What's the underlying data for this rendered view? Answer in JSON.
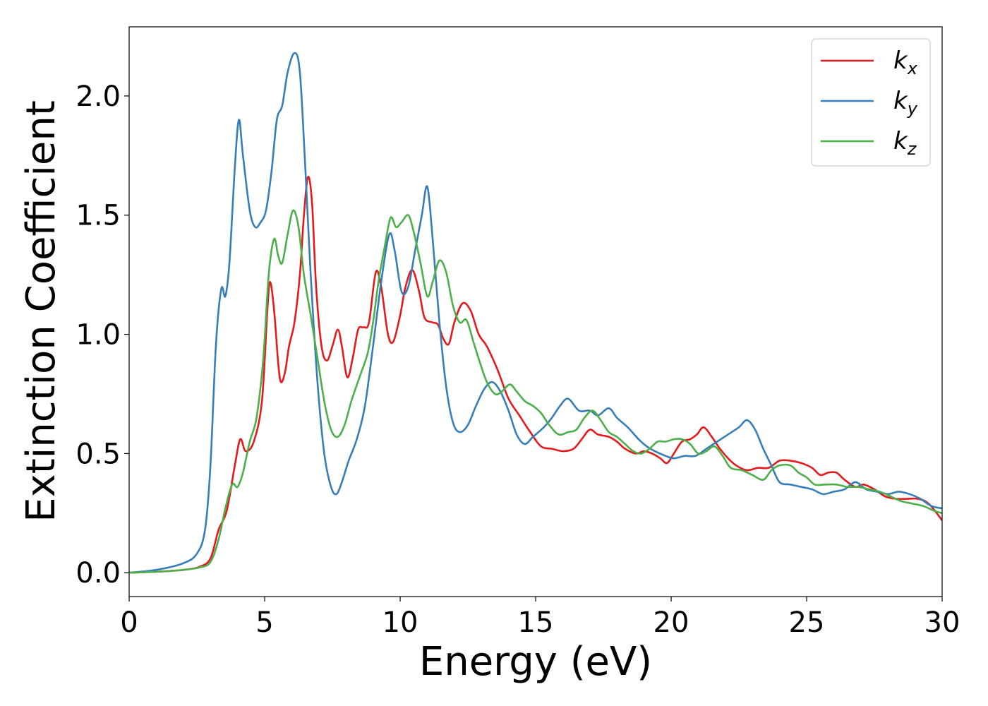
{
  "chart_data": {
    "type": "line",
    "xlabel": "Energy (eV)",
    "ylabel": "Extinction Coefficient",
    "xlim": [
      0,
      30
    ],
    "ylim": [
      -0.1,
      2.29
    ],
    "x_ticks": [
      0,
      5,
      10,
      15,
      20,
      25,
      30
    ],
    "y_ticks": [
      0.0,
      0.5,
      1.0,
      1.5,
      2.0
    ],
    "x_tick_labels": [
      "0",
      "5",
      "10",
      "15",
      "20",
      "25",
      "30"
    ],
    "y_tick_labels": [
      "0.0",
      "0.5",
      "1.0",
      "1.5",
      "2.0"
    ],
    "grid": false,
    "legend_position": "top-right",
    "series": [
      {
        "name": "k_x",
        "label_main": "k",
        "label_sub": "x",
        "color": "#e41a1c",
        "points": [
          [
            0,
            0
          ],
          [
            1,
            0.004
          ],
          [
            2,
            0.012
          ],
          [
            2.6,
            0.025
          ],
          [
            3,
            0.06
          ],
          [
            3.3,
            0.18
          ],
          [
            3.6,
            0.26
          ],
          [
            3.9,
            0.45
          ],
          [
            4.1,
            0.56
          ],
          [
            4.3,
            0.51
          ],
          [
            4.6,
            0.55
          ],
          [
            4.9,
            0.72
          ],
          [
            5.1,
            1.1
          ],
          [
            5.2,
            1.22
          ],
          [
            5.35,
            1.1
          ],
          [
            5.5,
            0.88
          ],
          [
            5.6,
            0.8
          ],
          [
            5.75,
            0.84
          ],
          [
            5.9,
            0.95
          ],
          [
            6.1,
            1.05
          ],
          [
            6.3,
            1.25
          ],
          [
            6.45,
            1.5
          ],
          [
            6.6,
            1.66
          ],
          [
            6.75,
            1.55
          ],
          [
            6.9,
            1.2
          ],
          [
            7.1,
            0.95
          ],
          [
            7.3,
            0.89
          ],
          [
            7.5,
            0.95
          ],
          [
            7.7,
            1.02
          ],
          [
            7.85,
            0.95
          ],
          [
            8.05,
            0.82
          ],
          [
            8.25,
            0.9
          ],
          [
            8.45,
            1.02
          ],
          [
            8.65,
            1.03
          ],
          [
            8.85,
            1.05
          ],
          [
            9.1,
            1.26
          ],
          [
            9.3,
            1.2
          ],
          [
            9.55,
            1.0
          ],
          [
            9.75,
            0.97
          ],
          [
            10.0,
            1.08
          ],
          [
            10.2,
            1.2
          ],
          [
            10.45,
            1.27
          ],
          [
            10.7,
            1.18
          ],
          [
            10.9,
            1.07
          ],
          [
            11.2,
            1.05
          ],
          [
            11.4,
            1.04
          ],
          [
            11.6,
            0.98
          ],
          [
            11.8,
            0.96
          ],
          [
            12.0,
            1.05
          ],
          [
            12.3,
            1.13
          ],
          [
            12.6,
            1.1
          ],
          [
            12.9,
            1.0
          ],
          [
            13.2,
            0.95
          ],
          [
            13.6,
            0.85
          ],
          [
            14.0,
            0.73
          ],
          [
            14.4,
            0.66
          ],
          [
            14.8,
            0.59
          ],
          [
            15.2,
            0.53
          ],
          [
            15.6,
            0.52
          ],
          [
            16.0,
            0.51
          ],
          [
            16.4,
            0.52
          ],
          [
            16.7,
            0.56
          ],
          [
            17.0,
            0.6
          ],
          [
            17.3,
            0.58
          ],
          [
            17.7,
            0.57
          ],
          [
            18.0,
            0.55
          ],
          [
            18.3,
            0.52
          ],
          [
            18.7,
            0.5
          ],
          [
            19.0,
            0.51
          ],
          [
            19.3,
            0.5
          ],
          [
            19.6,
            0.48
          ],
          [
            19.85,
            0.46
          ],
          [
            20.1,
            0.5
          ],
          [
            20.4,
            0.55
          ],
          [
            20.7,
            0.56
          ],
          [
            20.95,
            0.58
          ],
          [
            21.2,
            0.61
          ],
          [
            21.5,
            0.57
          ],
          [
            21.8,
            0.52
          ],
          [
            22.1,
            0.48
          ],
          [
            22.4,
            0.45
          ],
          [
            22.8,
            0.43
          ],
          [
            23.2,
            0.44
          ],
          [
            23.6,
            0.44
          ],
          [
            24.0,
            0.47
          ],
          [
            24.4,
            0.47
          ],
          [
            24.8,
            0.46
          ],
          [
            25.2,
            0.44
          ],
          [
            25.5,
            0.41
          ],
          [
            25.8,
            0.42
          ],
          [
            26.1,
            0.42
          ],
          [
            26.4,
            0.39
          ],
          [
            26.8,
            0.36
          ],
          [
            27.1,
            0.37
          ],
          [
            27.5,
            0.35
          ],
          [
            27.9,
            0.32
          ],
          [
            28.3,
            0.31
          ],
          [
            28.7,
            0.31
          ],
          [
            29.1,
            0.31
          ],
          [
            29.5,
            0.29
          ],
          [
            30.0,
            0.22
          ]
        ]
      },
      {
        "name": "k_y",
        "label_main": "k",
        "label_sub": "y",
        "color": "#377eb8",
        "points": [
          [
            0,
            0
          ],
          [
            1,
            0.012
          ],
          [
            2,
            0.04
          ],
          [
            2.5,
            0.08
          ],
          [
            2.8,
            0.18
          ],
          [
            3.0,
            0.45
          ],
          [
            3.2,
            0.95
          ],
          [
            3.4,
            1.19
          ],
          [
            3.55,
            1.16
          ],
          [
            3.7,
            1.3
          ],
          [
            3.9,
            1.7
          ],
          [
            4.05,
            1.9
          ],
          [
            4.2,
            1.75
          ],
          [
            4.45,
            1.52
          ],
          [
            4.65,
            1.45
          ],
          [
            4.85,
            1.47
          ],
          [
            5.05,
            1.52
          ],
          [
            5.25,
            1.68
          ],
          [
            5.45,
            1.9
          ],
          [
            5.65,
            1.96
          ],
          [
            5.85,
            2.1
          ],
          [
            6.1,
            2.18
          ],
          [
            6.3,
            2.1
          ],
          [
            6.5,
            1.7
          ],
          [
            6.7,
            1.25
          ],
          [
            6.95,
            0.8
          ],
          [
            7.2,
            0.5
          ],
          [
            7.45,
            0.36
          ],
          [
            7.65,
            0.33
          ],
          [
            7.85,
            0.38
          ],
          [
            8.1,
            0.47
          ],
          [
            8.4,
            0.56
          ],
          [
            8.7,
            0.7
          ],
          [
            9.0,
            0.95
          ],
          [
            9.3,
            1.22
          ],
          [
            9.6,
            1.42
          ],
          [
            9.8,
            1.35
          ],
          [
            10.05,
            1.18
          ],
          [
            10.3,
            1.2
          ],
          [
            10.55,
            1.35
          ],
          [
            10.8,
            1.5
          ],
          [
            11.0,
            1.62
          ],
          [
            11.2,
            1.4
          ],
          [
            11.45,
            1.05
          ],
          [
            11.7,
            0.78
          ],
          [
            11.95,
            0.63
          ],
          [
            12.2,
            0.59
          ],
          [
            12.5,
            0.62
          ],
          [
            12.8,
            0.7
          ],
          [
            13.1,
            0.77
          ],
          [
            13.4,
            0.8
          ],
          [
            13.7,
            0.76
          ],
          [
            14.0,
            0.68
          ],
          [
            14.3,
            0.58
          ],
          [
            14.6,
            0.54
          ],
          [
            14.9,
            0.57
          ],
          [
            15.3,
            0.61
          ],
          [
            15.6,
            0.65
          ],
          [
            15.9,
            0.7
          ],
          [
            16.2,
            0.73
          ],
          [
            16.6,
            0.68
          ],
          [
            17.0,
            0.68
          ],
          [
            17.3,
            0.66
          ],
          [
            17.7,
            0.69
          ],
          [
            18.0,
            0.65
          ],
          [
            18.4,
            0.61
          ],
          [
            18.8,
            0.56
          ],
          [
            19.1,
            0.53
          ],
          [
            19.4,
            0.51
          ],
          [
            19.8,
            0.49
          ],
          [
            20.1,
            0.48
          ],
          [
            20.5,
            0.49
          ],
          [
            20.9,
            0.49
          ],
          [
            21.3,
            0.52
          ],
          [
            21.7,
            0.55
          ],
          [
            22.1,
            0.58
          ],
          [
            22.5,
            0.61
          ],
          [
            22.8,
            0.64
          ],
          [
            23.1,
            0.6
          ],
          [
            23.4,
            0.52
          ],
          [
            23.7,
            0.45
          ],
          [
            24.0,
            0.38
          ],
          [
            24.4,
            0.37
          ],
          [
            24.8,
            0.36
          ],
          [
            25.2,
            0.35
          ],
          [
            25.6,
            0.33
          ],
          [
            26.0,
            0.34
          ],
          [
            26.4,
            0.35
          ],
          [
            26.8,
            0.38
          ],
          [
            27.2,
            0.35
          ],
          [
            27.6,
            0.34
          ],
          [
            28.0,
            0.33
          ],
          [
            28.4,
            0.34
          ],
          [
            28.8,
            0.33
          ],
          [
            29.2,
            0.31
          ],
          [
            29.6,
            0.28
          ],
          [
            30.0,
            0.27
          ]
        ]
      },
      {
        "name": "k_z",
        "label_main": "k",
        "label_sub": "z",
        "color": "#4daf4a",
        "points": [
          [
            0,
            0
          ],
          [
            1,
            0.004
          ],
          [
            2,
            0.012
          ],
          [
            2.6,
            0.022
          ],
          [
            3.0,
            0.045
          ],
          [
            3.3,
            0.14
          ],
          [
            3.55,
            0.27
          ],
          [
            3.8,
            0.37
          ],
          [
            4.0,
            0.36
          ],
          [
            4.2,
            0.42
          ],
          [
            4.45,
            0.55
          ],
          [
            4.7,
            0.65
          ],
          [
            4.95,
            0.9
          ],
          [
            5.15,
            1.25
          ],
          [
            5.35,
            1.4
          ],
          [
            5.5,
            1.33
          ],
          [
            5.65,
            1.3
          ],
          [
            5.85,
            1.42
          ],
          [
            6.05,
            1.52
          ],
          [
            6.25,
            1.45
          ],
          [
            6.45,
            1.25
          ],
          [
            6.7,
            1.08
          ],
          [
            6.95,
            0.9
          ],
          [
            7.2,
            0.72
          ],
          [
            7.45,
            0.6
          ],
          [
            7.7,
            0.57
          ],
          [
            7.95,
            0.62
          ],
          [
            8.2,
            0.72
          ],
          [
            8.5,
            0.82
          ],
          [
            8.8,
            0.92
          ],
          [
            9.0,
            1.05
          ],
          [
            9.2,
            1.22
          ],
          [
            9.45,
            1.38
          ],
          [
            9.65,
            1.49
          ],
          [
            9.85,
            1.45
          ],
          [
            10.05,
            1.47
          ],
          [
            10.3,
            1.5
          ],
          [
            10.5,
            1.43
          ],
          [
            10.75,
            1.3
          ],
          [
            11.0,
            1.16
          ],
          [
            11.2,
            1.22
          ],
          [
            11.45,
            1.31
          ],
          [
            11.7,
            1.26
          ],
          [
            11.95,
            1.12
          ],
          [
            12.2,
            1.05
          ],
          [
            12.45,
            1.06
          ],
          [
            12.7,
            0.97
          ],
          [
            12.95,
            0.88
          ],
          [
            13.2,
            0.8
          ],
          [
            13.5,
            0.75
          ],
          [
            13.75,
            0.76
          ],
          [
            14.05,
            0.79
          ],
          [
            14.3,
            0.76
          ],
          [
            14.6,
            0.72
          ],
          [
            14.9,
            0.7
          ],
          [
            15.2,
            0.67
          ],
          [
            15.5,
            0.62
          ],
          [
            15.85,
            0.58
          ],
          [
            16.2,
            0.59
          ],
          [
            16.5,
            0.6
          ],
          [
            16.8,
            0.65
          ],
          [
            17.1,
            0.68
          ],
          [
            17.4,
            0.64
          ],
          [
            17.7,
            0.59
          ],
          [
            18.0,
            0.57
          ],
          [
            18.3,
            0.54
          ],
          [
            18.6,
            0.51
          ],
          [
            18.9,
            0.5
          ],
          [
            19.2,
            0.52
          ],
          [
            19.5,
            0.55
          ],
          [
            19.8,
            0.55
          ],
          [
            20.1,
            0.56
          ],
          [
            20.4,
            0.56
          ],
          [
            20.7,
            0.54
          ],
          [
            21.0,
            0.5
          ],
          [
            21.3,
            0.51
          ],
          [
            21.6,
            0.53
          ],
          [
            21.9,
            0.49
          ],
          [
            22.2,
            0.44
          ],
          [
            22.6,
            0.43
          ],
          [
            23.0,
            0.41
          ],
          [
            23.4,
            0.39
          ],
          [
            23.7,
            0.43
          ],
          [
            24.0,
            0.45
          ],
          [
            24.4,
            0.45
          ],
          [
            24.7,
            0.42
          ],
          [
            25.0,
            0.4
          ],
          [
            25.3,
            0.37
          ],
          [
            25.7,
            0.37
          ],
          [
            26.1,
            0.37
          ],
          [
            26.5,
            0.36
          ],
          [
            26.9,
            0.36
          ],
          [
            27.3,
            0.35
          ],
          [
            27.7,
            0.34
          ],
          [
            28.1,
            0.32
          ],
          [
            28.5,
            0.3
          ],
          [
            28.9,
            0.29
          ],
          [
            29.3,
            0.28
          ],
          [
            29.7,
            0.26
          ],
          [
            30.0,
            0.25
          ]
        ]
      }
    ]
  }
}
